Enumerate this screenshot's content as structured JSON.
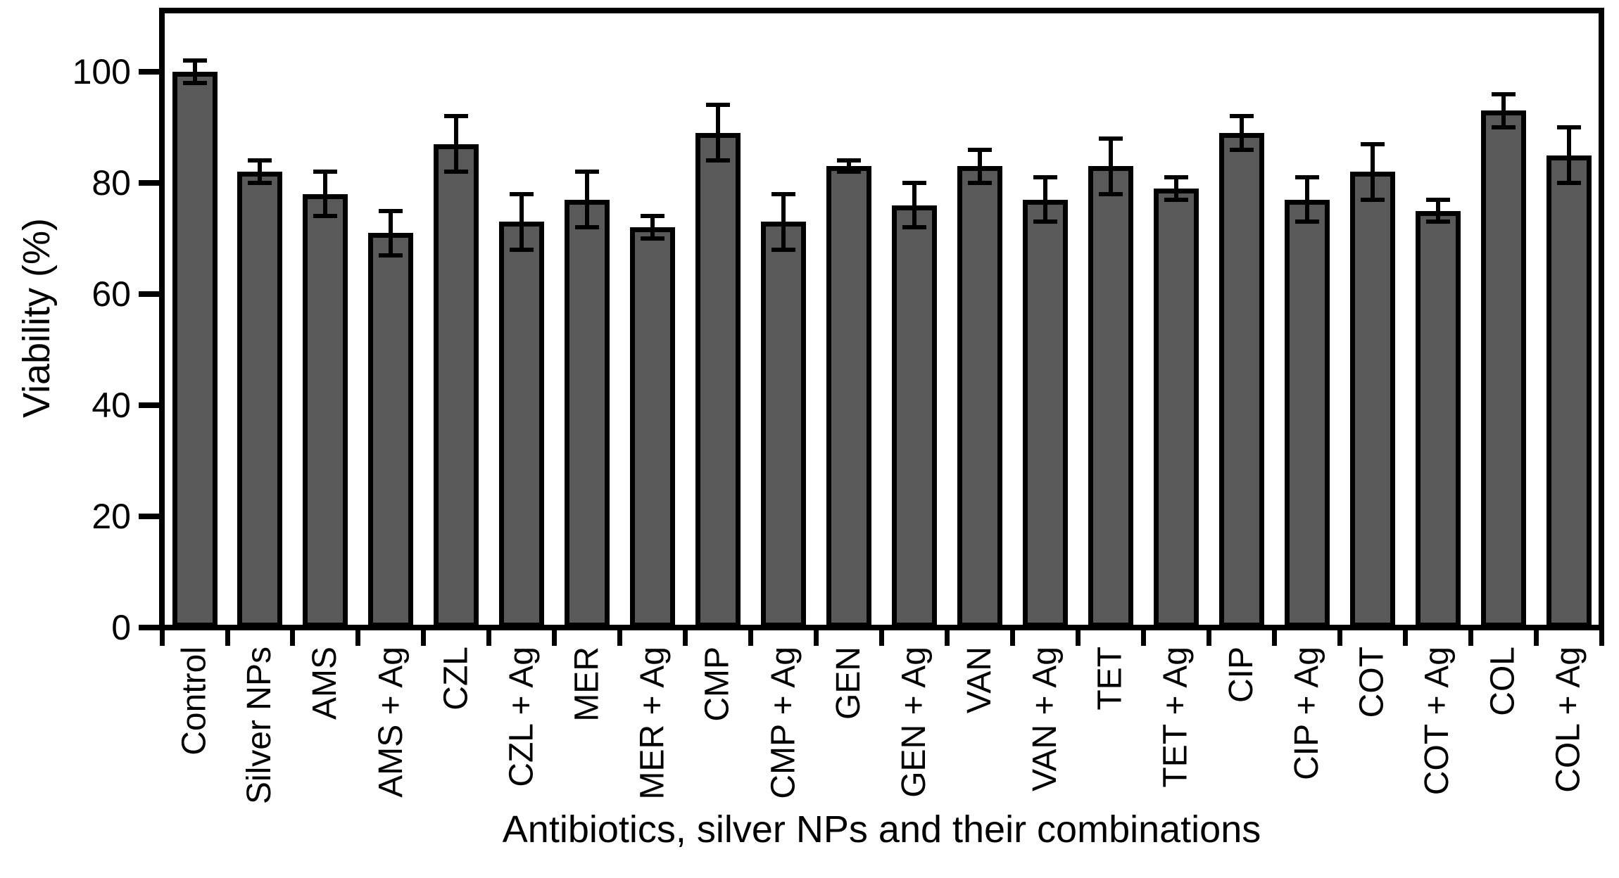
{
  "chart_data": {
    "type": "bar",
    "title": "",
    "xlabel": "Antibiotics, silver NPs and their combinations",
    "ylabel": "Viability (%)",
    "ylim": [
      0,
      111
    ],
    "yticks": [
      0,
      20,
      40,
      60,
      80,
      100
    ],
    "grid": false,
    "legend": null,
    "background_color": "#ffffff",
    "bar_fill_color": "#595959",
    "bar_border_color": "#000000",
    "error_bar_color": "#000000",
    "categories": [
      "Control",
      "Silver NPs",
      "AMS",
      "AMS + Ag",
      "CZL",
      "CZL + Ag",
      "MER",
      "MER + Ag",
      "CMP",
      "CMP + Ag",
      "GEN",
      "GEN + Ag",
      "VAN",
      "VAN + Ag",
      "TET",
      "TET + Ag",
      "CIP",
      "CIP + Ag",
      "COT",
      "COT + Ag",
      "COL",
      "COL + Ag"
    ],
    "series": [
      {
        "name": "Viability (%)",
        "values": [
          100,
          82,
          78,
          71,
          87,
          73,
          77,
          72,
          89,
          73,
          83,
          76,
          83,
          77,
          83,
          79,
          89,
          77,
          82,
          75,
          93,
          85
        ],
        "errors": [
          2,
          2,
          4,
          4,
          5,
          5,
          5,
          2,
          5,
          5,
          1,
          4,
          3,
          4,
          5,
          2,
          3,
          4,
          5,
          2,
          3,
          5
        ]
      }
    ]
  }
}
